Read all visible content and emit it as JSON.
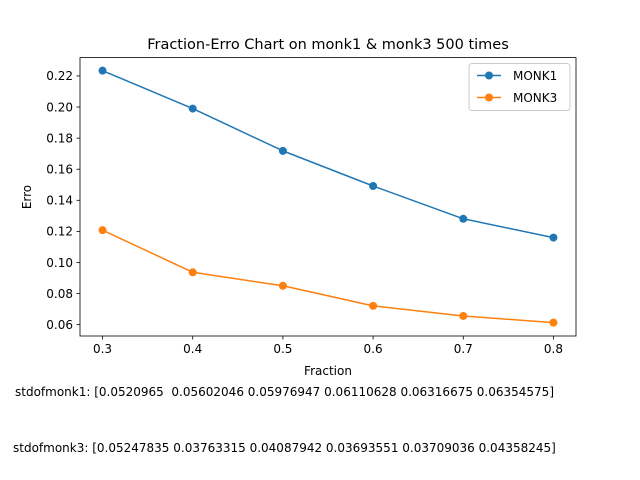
{
  "chart_data": {
    "type": "line",
    "title": "Fraction-Erro Chart on monk1 & monk3 500 times",
    "xlabel": "Fraction",
    "ylabel": "Erro",
    "x": [
      0.3,
      0.4,
      0.5,
      0.6,
      0.7,
      0.8
    ],
    "xlim": [
      0.275,
      0.825
    ],
    "ylim": [
      0.0527,
      0.2318
    ],
    "xticks": [
      "0.3",
      "0.4",
      "0.5",
      "0.6",
      "0.7",
      "0.8"
    ],
    "xtick_values": [
      0.3,
      0.4,
      0.5,
      0.6,
      0.7,
      0.8
    ],
    "yticks": [
      "0.06",
      "0.08",
      "0.10",
      "0.12",
      "0.14",
      "0.16",
      "0.18",
      "0.20",
      "0.22"
    ],
    "ytick_values": [
      0.06,
      0.08,
      0.1,
      0.12,
      0.14,
      0.16,
      0.18,
      0.2,
      0.22
    ],
    "grid": false,
    "legend_position": "top-right",
    "series": [
      {
        "name": "MONK1",
        "color": "#1f77b4",
        "marker": "circle",
        "values": [
          0.2234,
          0.199,
          0.1718,
          0.1492,
          0.1281,
          0.116
        ]
      },
      {
        "name": "MONK3",
        "color": "#ff7f0e",
        "marker": "circle",
        "values": [
          0.1208,
          0.0937,
          0.085,
          0.0721,
          0.0656,
          0.0613
        ]
      }
    ],
    "annotations": [
      "stdofmonk1: [0.0520965  0.05602046 0.05976947 0.06110628 0.06316675 0.06354575]",
      "stdofmonk3: [0.05247835 0.03763315 0.04087942 0.03693551 0.03709036 0.04358245]"
    ]
  }
}
